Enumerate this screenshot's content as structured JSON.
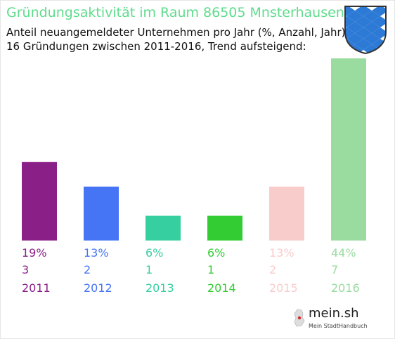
{
  "header": {
    "title": "Gründungsaktivität im Raum 86505 Mnsterhausen",
    "subtitle1": "Anteil neuangemeldeter Unternehmen pro Jahr (%, Anzahl, Jahr)",
    "subtitle2": "16 Gründungen zwischen 2011-2016, Trend aufsteigend:"
  },
  "brand": {
    "name": "mein.sh",
    "tagline": "Mein StadtHandbuch"
  },
  "crest": {
    "icon": "bavarian-lozenge-crest-icon",
    "colors": [
      "#ffffff",
      "#2c7ad6",
      "#333333"
    ]
  },
  "chart_data": {
    "type": "bar",
    "categories": [
      "2011",
      "2012",
      "2013",
      "2014",
      "2015",
      "2016"
    ],
    "values": [
      19,
      13,
      6,
      6,
      13,
      44
    ],
    "counts": [
      "3",
      "2",
      "1",
      "1",
      "2",
      "7"
    ],
    "percent_labels": [
      "19%",
      "13%",
      "6%",
      "6%",
      "13%",
      "44%"
    ],
    "colors": [
      "#8a1f87",
      "#4574f4",
      "#36cf9f",
      "#33cc33",
      "#f9cccc",
      "#9adb9f"
    ],
    "ylim": [
      0,
      44
    ],
    "grid": false,
    "legend": "none"
  }
}
